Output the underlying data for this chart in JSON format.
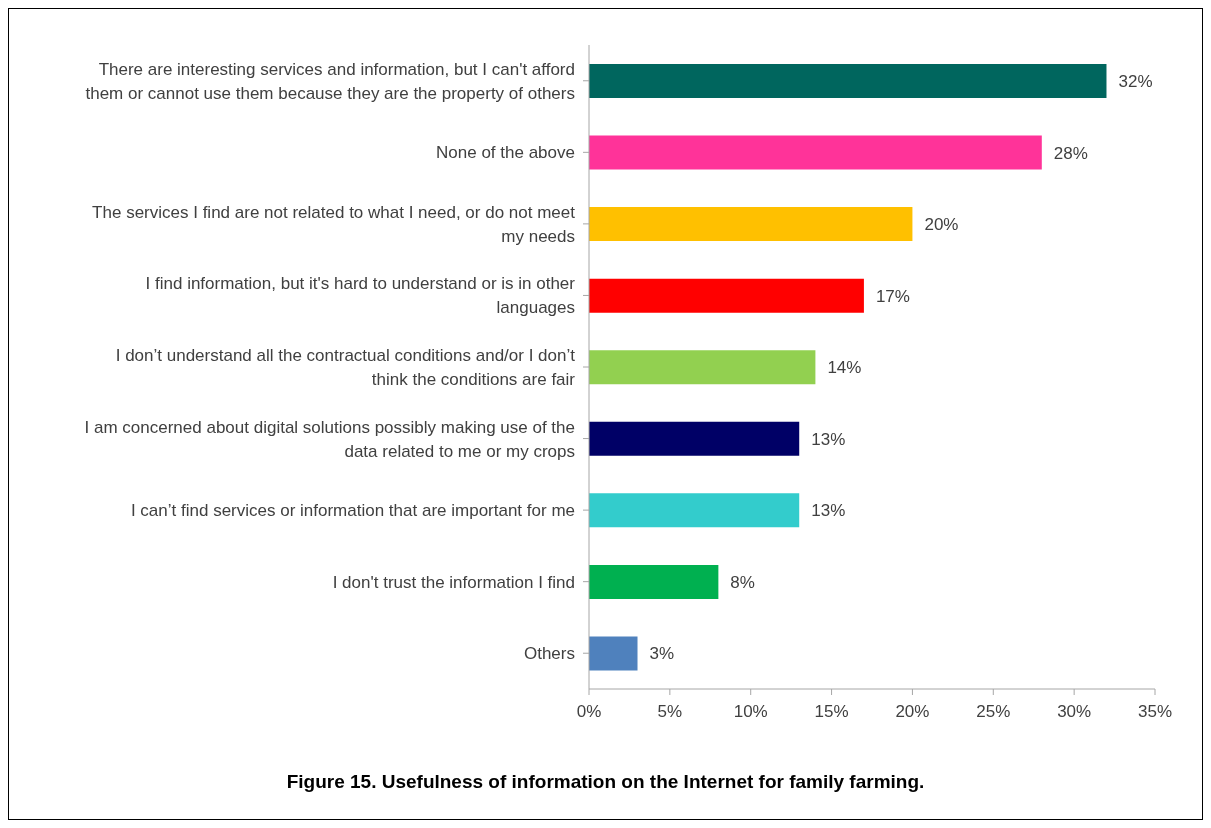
{
  "chart_data": {
    "type": "bar",
    "orientation": "horizontal",
    "title": "Figure 15. Usefulness of information on the Internet for family farming.",
    "categories": [
      "There are interesting services and information, but I can't afford them or cannot use them because they are the property of others",
      "None of the above",
      "The services I find are not related to what I need, or do not meet my needs",
      "I find information, but it's hard to understand or is in other languages",
      "I don’t understand all the contractual conditions and/or I don’t think the conditions are fair",
      "I am concerned about digital solutions possibly making use of the data related to me or my crops",
      "I can’t find services or information that are important for me",
      "I don't trust the information I find",
      "Others"
    ],
    "values": [
      32,
      28,
      20,
      17,
      14,
      13,
      13,
      8,
      3
    ],
    "value_labels": [
      "32%",
      "28%",
      "20%",
      "17%",
      "14%",
      "13%",
      "13%",
      "8%",
      "3%"
    ],
    "colors": [
      "#00665e",
      "#ff3399",
      "#ffc000",
      "#ff0000",
      "#92d050",
      "#000066",
      "#33cccc",
      "#00b050",
      "#4f81bd"
    ],
    "xlim": [
      0,
      35
    ],
    "xticks": [
      {
        "value": 0,
        "label": "0%"
      },
      {
        "value": 5,
        "label": "5%"
      },
      {
        "value": 10,
        "label": "10%"
      },
      {
        "value": 15,
        "label": "15%"
      },
      {
        "value": 20,
        "label": "20%"
      },
      {
        "value": 25,
        "label": "25%"
      },
      {
        "value": 30,
        "label": "30%"
      },
      {
        "value": 35,
        "label": "35%"
      }
    ],
    "grid": false,
    "legend": false
  }
}
